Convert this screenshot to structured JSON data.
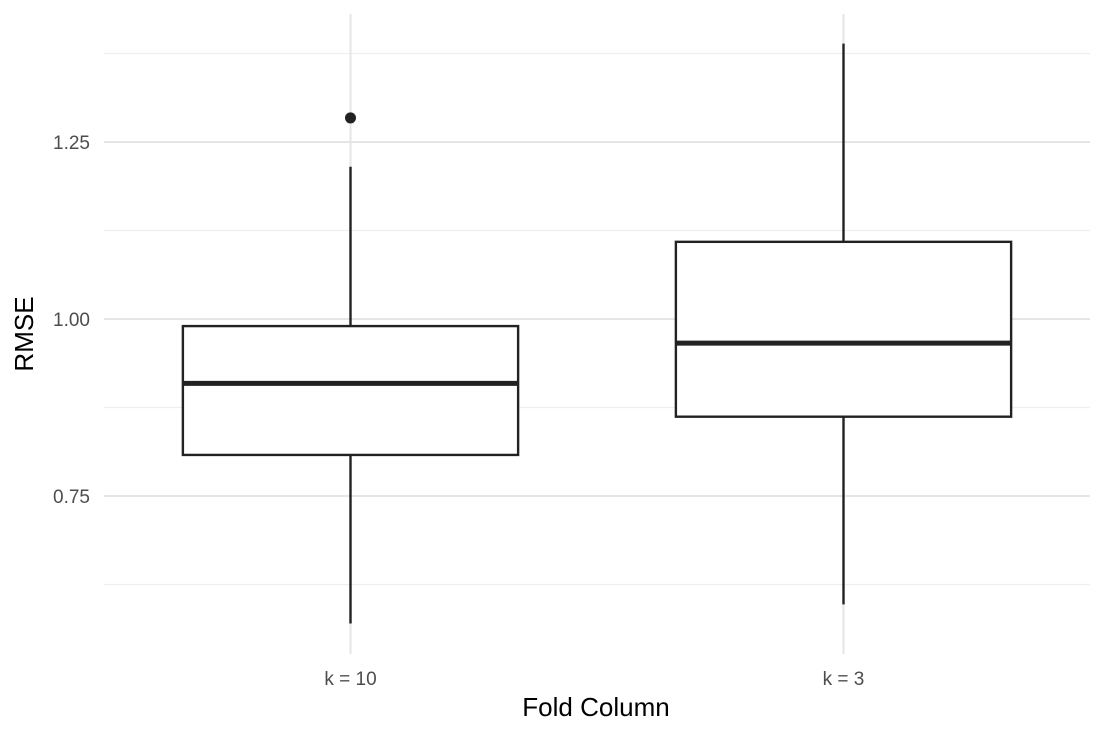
{
  "chart_data": {
    "type": "boxplot",
    "title": "",
    "xlabel": "Fold Column",
    "ylabel": "RMSE",
    "ylim": [
      0.575,
      1.41
    ],
    "y_ticks": [
      "0.75",
      "1.00",
      "1.25"
    ],
    "grid": true,
    "categories": [
      "k = 10",
      "k = 3"
    ],
    "boxes": [
      {
        "category": "k = 10",
        "whisker_low": 0.57,
        "q1": 0.808,
        "median": 0.909,
        "q3": 0.99,
        "whisker_high": 1.215,
        "outliers": [
          1.284
        ]
      },
      {
        "category": "k = 3",
        "whisker_low": 0.597,
        "q1": 0.862,
        "median": 0.966,
        "q3": 1.109,
        "whisker_high": 1.389,
        "outliers": []
      }
    ],
    "colors": {
      "box_stroke": "#222222",
      "box_fill": "#ffffff",
      "grid_major": "#e5e5e5",
      "grid_minor": "#efefef"
    }
  }
}
